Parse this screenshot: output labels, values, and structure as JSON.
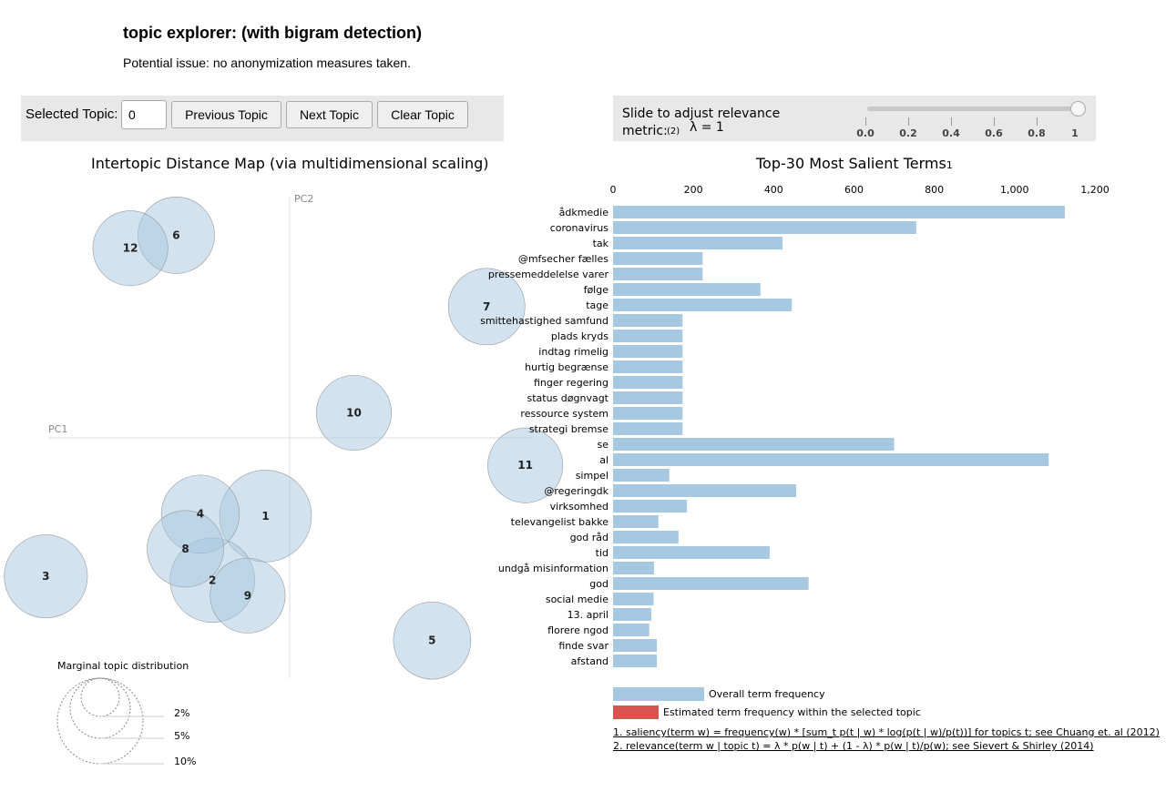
{
  "header": {
    "title": "topic explorer: (with bigram detection)",
    "subtitle": "Potential issue: no anonymization measures taken."
  },
  "topic_controls": {
    "label": "Selected Topic:",
    "input_value": "0",
    "prev_label": "Previous Topic",
    "next_label": "Next Topic",
    "clear_label": "Clear Topic"
  },
  "relevance": {
    "label_line1": "Slide to adjust relevance",
    "label_line2": "metric:",
    "footnote_mark": "(2)",
    "lambda_text": "λ = 1",
    "lambda": 1,
    "ticks": [
      "0.0",
      "0.2",
      "0.4",
      "0.6",
      "0.8",
      "1"
    ]
  },
  "map": {
    "title": "Intertopic Distance Map (via multidimensional scaling)",
    "pc1_label": "PC1",
    "pc2_label": "PC2",
    "marginal_title": "Marginal topic distribution",
    "marginal_labels": [
      "2%",
      "5%",
      "10%"
    ]
  },
  "bar_chart": {
    "title": "Top-30 Most Salient Terms",
    "footnote_mark": "1",
    "legend_overall": "Overall term frequency",
    "legend_topic": "Estimated term frequency within the selected topic"
  },
  "footnotes": {
    "saliency": "1. saliency(term w) = frequency(w) * [sum_t p(t | w) * log(p(t | w)/p(t))] for topics t; see Chuang et. al (2012)",
    "relevance": "2. relevance(term w | topic t) = λ * p(w | t) + (1 - λ) * p(w | t)/p(w); see Sievert & Shirley (2014)"
  },
  "colors": {
    "bar_overall": "#a6c8e0",
    "bar_topic": "#d9534f",
    "bubble_fill": "#a6c8e0",
    "panel_bg": "#e8e8e8"
  },
  "chart_data": [
    {
      "type": "scatter",
      "title": "Intertopic Distance Map (via multidimensional scaling)",
      "xlabel": "PC1",
      "ylabel": "PC2",
      "points": [
        {
          "label": "1",
          "x": -0.05,
          "y": -0.162,
          "size_pct": 7.2
        },
        {
          "label": "2",
          "x": -0.16,
          "y": -0.295,
          "size_pct": 6.1
        },
        {
          "label": "3",
          "x": -0.505,
          "y": -0.287,
          "size_pct": 5.9
        },
        {
          "label": "4",
          "x": -0.185,
          "y": -0.158,
          "size_pct": 5.2
        },
        {
          "label": "5",
          "x": 0.295,
          "y": -0.42,
          "size_pct": 5.1
        },
        {
          "label": "6",
          "x": -0.235,
          "y": 0.42,
          "size_pct": 5.0
        },
        {
          "label": "7",
          "x": 0.408,
          "y": 0.272,
          "size_pct": 5.0
        },
        {
          "label": "8",
          "x": -0.216,
          "y": -0.23,
          "size_pct": 5.0
        },
        {
          "label": "9",
          "x": -0.087,
          "y": -0.327,
          "size_pct": 4.8
        },
        {
          "label": "10",
          "x": 0.133,
          "y": 0.052,
          "size_pct": 4.8
        },
        {
          "label": "11",
          "x": 0.488,
          "y": -0.057,
          "size_pct": 4.8
        },
        {
          "label": "12",
          "x": -0.33,
          "y": 0.393,
          "size_pct": 4.8
        }
      ]
    },
    {
      "type": "bar",
      "orientation": "horizontal",
      "title": "Top-30 Most Salient Terms",
      "xlim": [
        0,
        1200
      ],
      "xticks": [
        0,
        200,
        400,
        600,
        800,
        1000,
        1200
      ],
      "xtick_labels": [
        "0",
        "200",
        "400",
        "600",
        "800",
        "1,000",
        "1,200"
      ],
      "categories": [
        "ådkmedie",
        "coronavirus",
        "tak",
        "@mfsecher fælles",
        "pressemeddelelse varer",
        "følge",
        "tage",
        "smittehastighed samfund",
        "plads kryds",
        "indtag rimelig",
        "hurtig begrænse",
        "finger regering",
        "status døgnvagt",
        "ressource system",
        "strategi bremse",
        "se",
        "al",
        "simpel",
        "@regeringdk",
        "virksomhed",
        "televangelist bakke",
        "god råd",
        "tid",
        "undgå misinformation",
        "god",
        "social medie",
        "13. april",
        "florere ngod",
        "finde svar",
        "afstand"
      ],
      "series": [
        {
          "name": "Overall term frequency",
          "values": [
            1125,
            755,
            422,
            223,
            223,
            367,
            445,
            173,
            173,
            173,
            173,
            173,
            173,
            173,
            173,
            700,
            1085,
            140,
            456,
            184,
            113,
            163,
            390,
            102,
            487,
            101,
            95,
            90,
            109,
            109
          ]
        }
      ]
    }
  ]
}
